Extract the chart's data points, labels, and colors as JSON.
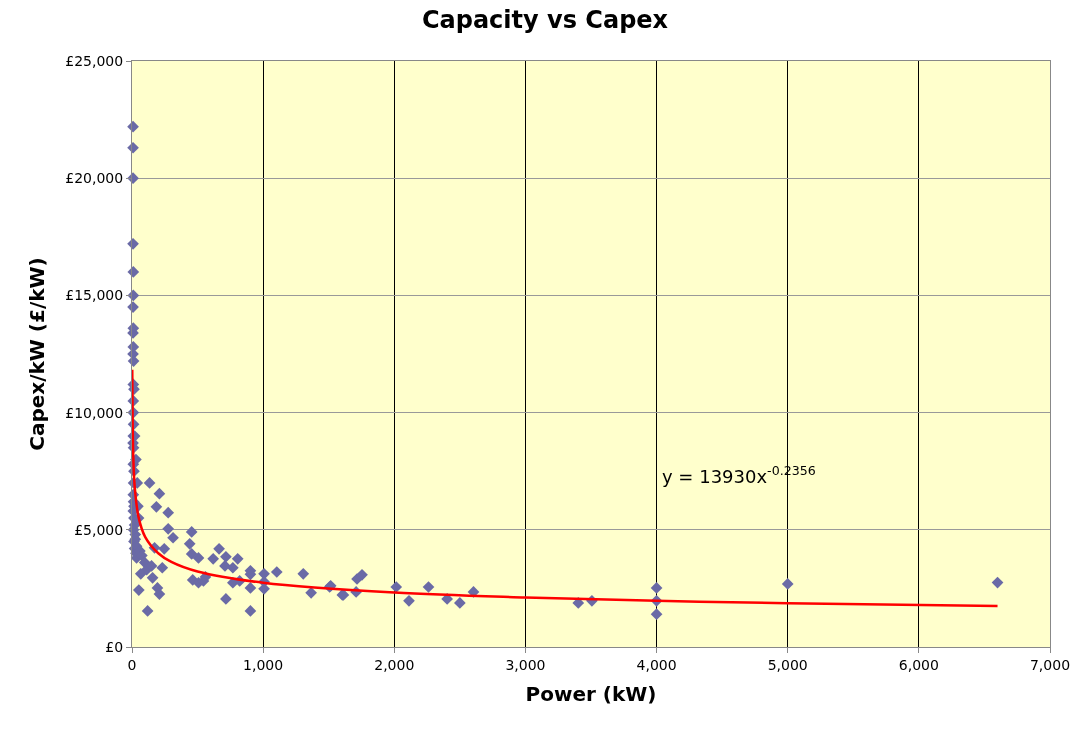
{
  "chart_data": {
    "type": "scatter",
    "title": "Capacity vs Capex",
    "xlabel": "Power (kW)",
    "ylabel": "Capex/kW (£/kW)",
    "xlim": [
      0,
      7000
    ],
    "xticks": [
      {
        "value": 0,
        "label": "0"
      },
      {
        "value": 1000,
        "label": "1,000"
      },
      {
        "value": 2000,
        "label": "2,000"
      },
      {
        "value": 3000,
        "label": "3,000"
      },
      {
        "value": 4000,
        "label": "4,000"
      },
      {
        "value": 5000,
        "label": "5,000"
      },
      {
        "value": 6000,
        "label": "6,000"
      },
      {
        "value": 7000,
        "label": "7,000"
      }
    ],
    "ylim": [
      0,
      25000
    ],
    "yticks": [
      {
        "value": 0,
        "label": "£0"
      },
      {
        "value": 5000,
        "label": "£5,000"
      },
      {
        "value": 10000,
        "label": "£10,000"
      },
      {
        "value": 15000,
        "label": "£15,000"
      },
      {
        "value": 20000,
        "label": "£20,000"
      },
      {
        "value": 25000,
        "label": "£25,000"
      }
    ],
    "grid": true,
    "series": [
      {
        "marker": "diamond",
        "color": "#6a6aa6",
        "x": [
          8,
          8,
          8,
          8,
          10,
          10,
          8,
          10,
          8,
          10,
          8,
          12,
          10,
          15,
          10,
          10,
          12,
          10,
          8,
          12,
          10,
          15,
          12,
          10,
          12,
          15,
          10,
          15,
          20,
          12,
          25,
          15,
          20,
          30,
          35,
          20,
          30,
          40,
          45,
          50,
          25,
          35,
          60,
          75,
          97,
          112,
          134,
          209,
          186,
          276,
          276,
          313,
          455,
          440,
          455,
          507,
          619,
          664,
          716,
          806,
          709,
          769,
          903,
          903,
          1007,
          1104,
          1306,
          463,
          507,
          545,
          560,
          769,
          821,
          903,
          1007,
          1007,
          1366,
          1515,
          1604,
          716,
          903,
          119,
          52,
          67,
          157,
          194,
          209,
          149,
          231,
          246,
          172,
          1507,
          1612,
          1709,
          1716,
          1754,
          2015,
          2112,
          2261,
          2403,
          2500,
          2604,
          3403,
          3507,
          4000,
          4000,
          4000,
          5000,
          6600
        ],
        "values": [
          22200,
          21300,
          20000,
          17200,
          16000,
          15000,
          14500,
          13600,
          13400,
          12800,
          12500,
          12200,
          11200,
          11000,
          10500,
          10000,
          9500,
          9000,
          8700,
          8500,
          7800,
          7500,
          7000,
          6500,
          6200,
          6000,
          5800,
          5500,
          5200,
          5000,
          4800,
          4500,
          4200,
          4000,
          3800,
          9000,
          8000,
          7000,
          6000,
          5500,
          4600,
          4300,
          4100,
          3900,
          3600,
          3300,
          7000,
          6540,
          5980,
          5730,
          5040,
          4660,
          4910,
          4400,
          3970,
          3800,
          3760,
          4190,
          3850,
          3760,
          3460,
          3380,
          3250,
          3100,
          3120,
          3200,
          3120,
          2860,
          2740,
          2820,
          2990,
          2740,
          2820,
          2520,
          2480,
          2780,
          2310,
          2610,
          2220,
          2050,
          1540,
          1540,
          2430,
          3120,
          2950,
          2520,
          2260,
          3460,
          3380,
          4190,
          4230,
          2560,
          2220,
          2350,
          2900,
          3080,
          2560,
          1970,
          2560,
          2050,
          1880,
          2350,
          1880,
          1970,
          2520,
          1970,
          1400,
          2690,
          2750
        ]
      },
      {
        "type": "line",
        "marker": "none",
        "color": "#ff0000",
        "line_style": "solid",
        "x": [
          2,
          5,
          10,
          20,
          50,
          100,
          200,
          300,
          500,
          1000,
          2000,
          3000,
          4000,
          5000,
          6600
        ],
        "values": [
          11830,
          9540,
          8100,
          6880,
          5540,
          4700,
          4000,
          3630,
          3220,
          2740,
          2320,
          2110,
          1970,
          1870,
          1750
        ]
      }
    ],
    "annotations": [
      "y = 13930x$^{-0.2356}$"
    ]
  }
}
